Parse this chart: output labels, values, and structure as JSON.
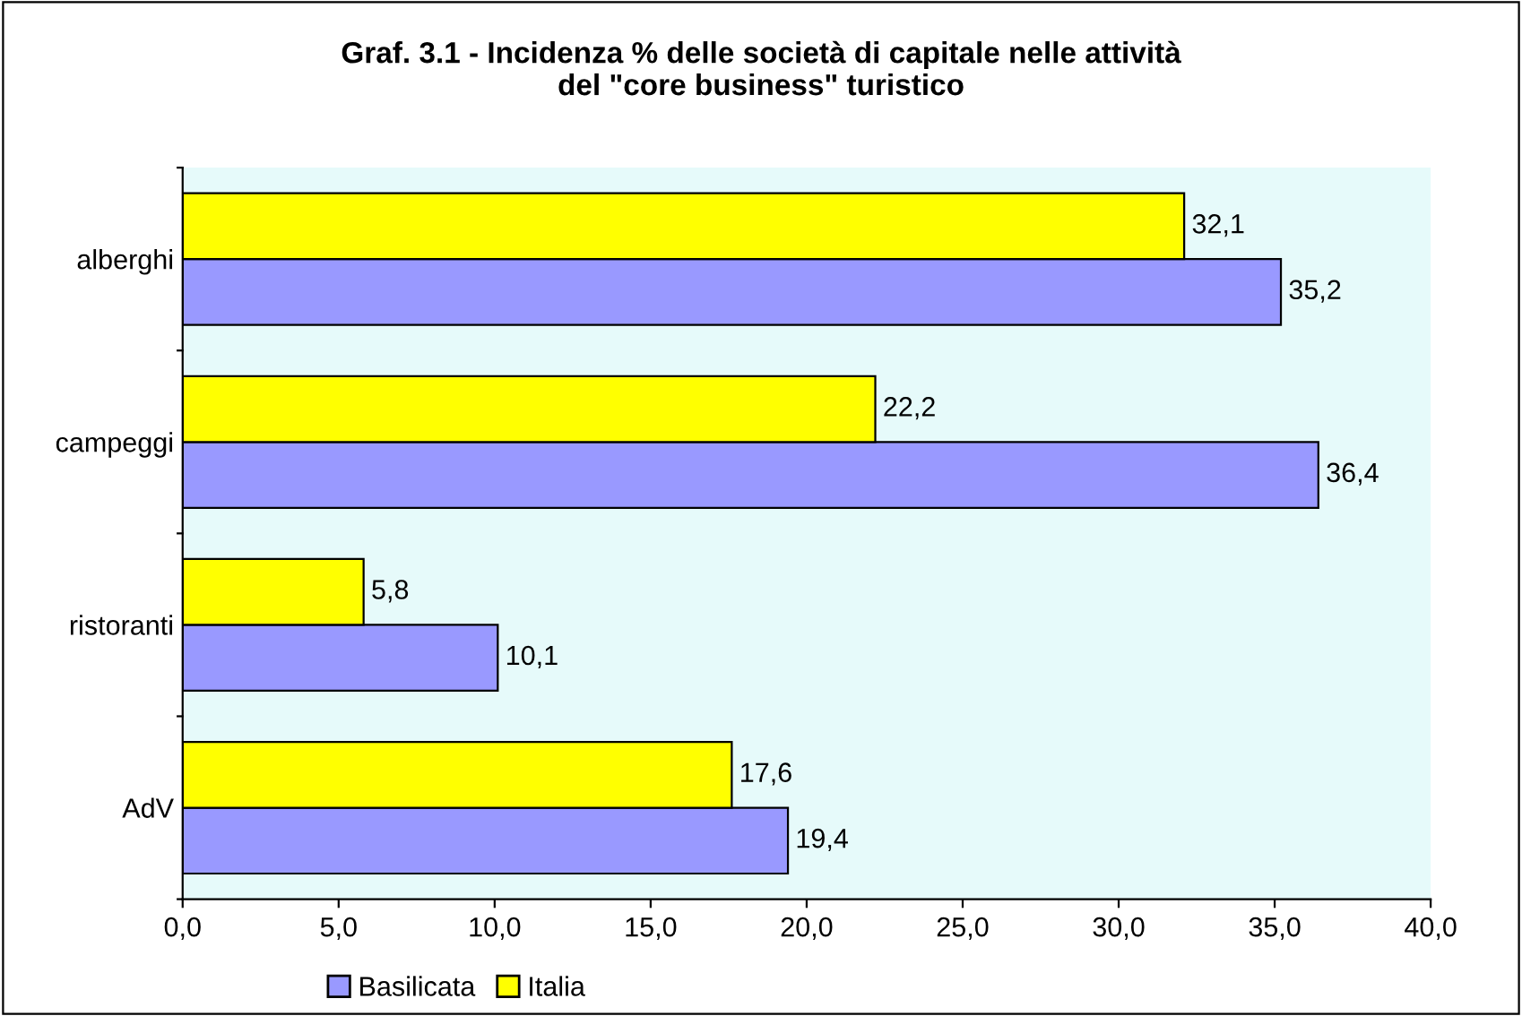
{
  "chart_data": {
    "type": "bar",
    "orientation": "horizontal",
    "title": "Graf. 3.1 - Incidenza % delle società di capitale nelle attività\ndel \"core business\" turistico",
    "categories": [
      "alberghi",
      "campeggi",
      "ristoranti",
      "AdV"
    ],
    "series": [
      {
        "name": "Basilicata",
        "color": "#9999ff",
        "values": [
          35.2,
          36.4,
          10.1,
          19.4
        ],
        "value_labels": [
          "35,2",
          "36,4",
          "10,1",
          "19,4"
        ]
      },
      {
        "name": "Italia",
        "color": "#ffff00",
        "values": [
          32.1,
          22.2,
          5.8,
          17.6
        ],
        "value_labels": [
          "32,1",
          "22,2",
          "5,8",
          "17,6"
        ]
      }
    ],
    "xlim": [
      0,
      40
    ],
    "xticks": [
      {
        "value": 0,
        "label": "0,0"
      },
      {
        "value": 5,
        "label": "5,0"
      },
      {
        "value": 10,
        "label": "10,0"
      },
      {
        "value": 15,
        "label": "15,0"
      },
      {
        "value": 20,
        "label": "20,0"
      },
      {
        "value": 25,
        "label": "25,0"
      },
      {
        "value": 30,
        "label": "30,0"
      },
      {
        "value": 35,
        "label": "35,0"
      },
      {
        "value": 40,
        "label": "40,0"
      }
    ],
    "legend": "bottom"
  }
}
